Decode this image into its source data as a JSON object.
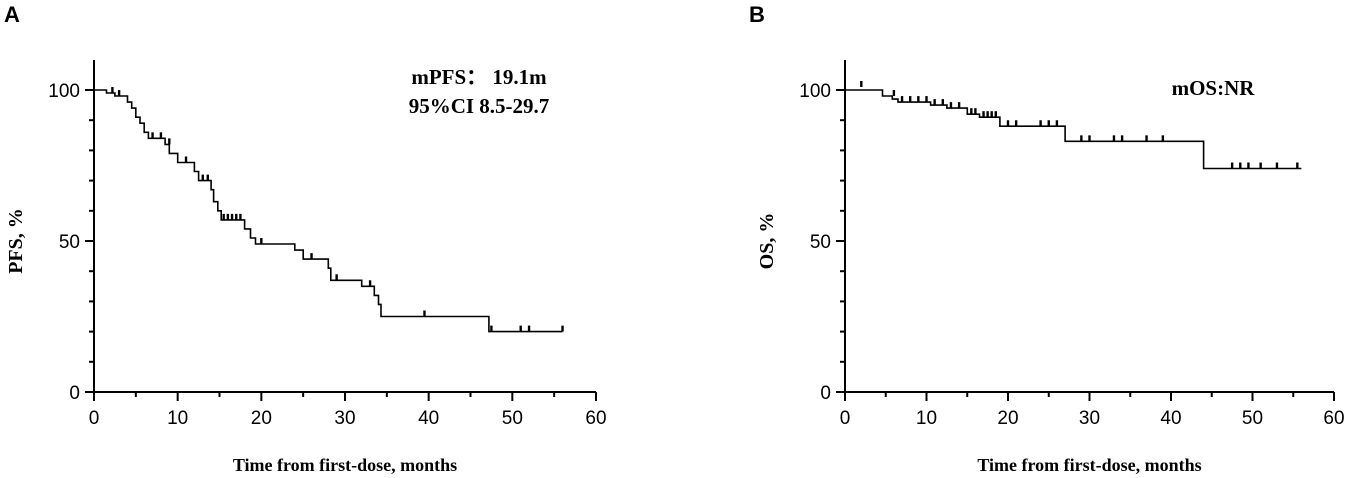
{
  "chart_data": [
    {
      "type": "line",
      "panel_label": "A",
      "xlabel": "Time from first-dose, months",
      "ylabel": "PFS, %",
      "xlim": [
        0,
        60
      ],
      "ylim": [
        0,
        100
      ],
      "xticks": [
        0,
        10,
        20,
        30,
        40,
        50,
        60
      ],
      "yticks": [
        0,
        50,
        100
      ],
      "grid": false,
      "annotations": [
        "mPFS： 19.1m",
        "95%CI 8.5-29.7"
      ],
      "series": [
        {
          "step": [
            [
              0,
              100
            ],
            [
              1.5,
              99
            ],
            [
              2.5,
              98
            ],
            [
              4,
              96
            ],
            [
              4.5,
              94
            ],
            [
              5,
              91
            ],
            [
              5.5,
              89
            ],
            [
              6,
              86
            ],
            [
              6.5,
              84
            ],
            [
              8.5,
              82
            ],
            [
              9,
              79
            ],
            [
              10,
              76
            ],
            [
              12,
              73
            ],
            [
              12.5,
              70
            ],
            [
              14,
              67
            ],
            [
              14.3,
              63
            ],
            [
              14.8,
              60
            ],
            [
              15.2,
              57
            ],
            [
              18,
              54
            ],
            [
              18.7,
              51
            ],
            [
              19.3,
              49
            ],
            [
              24,
              47
            ],
            [
              25,
              44
            ],
            [
              28,
              41
            ],
            [
              28.3,
              37
            ],
            [
              32,
              35
            ],
            [
              33.5,
              32
            ],
            [
              34,
              29
            ],
            [
              34.3,
              25
            ],
            [
              47.2,
              20
            ],
            [
              56,
              20
            ]
          ],
          "censored": [
            [
              2.2,
              99
            ],
            [
              3,
              98
            ],
            [
              7,
              84
            ],
            [
              8,
              84
            ],
            [
              9,
              82
            ],
            [
              11,
              76
            ],
            [
              13,
              70
            ],
            [
              13.6,
              70
            ],
            [
              15.5,
              57
            ],
            [
              16,
              57
            ],
            [
              16.5,
              57
            ],
            [
              17,
              57
            ],
            [
              17.5,
              57
            ],
            [
              20,
              49
            ],
            [
              26,
              44
            ],
            [
              29,
              37
            ],
            [
              33,
              35
            ],
            [
              39.5,
              25
            ],
            [
              47.5,
              20
            ],
            [
              51,
              20
            ],
            [
              52,
              20
            ],
            [
              56,
              20
            ]
          ]
        }
      ]
    },
    {
      "type": "line",
      "panel_label": "B",
      "xlabel": "Time from first-dose, months",
      "ylabel": "OS, %",
      "xlim": [
        0,
        60
      ],
      "ylim": [
        0,
        100
      ],
      "xticks": [
        0,
        10,
        20,
        30,
        40,
        50,
        60
      ],
      "yticks": [
        0,
        50,
        100
      ],
      "grid": false,
      "annotations": [
        "mOS:NR"
      ],
      "series": [
        {
          "step": [
            [
              0,
              100
            ],
            [
              4.6,
              98
            ],
            [
              5.8,
              97
            ],
            [
              6.5,
              96
            ],
            [
              10.5,
              95
            ],
            [
              12.5,
              94
            ],
            [
              15,
              92
            ],
            [
              16.5,
              91
            ],
            [
              19,
              88
            ],
            [
              27,
              83
            ],
            [
              44,
              74
            ],
            [
              56,
              74
            ]
          ],
          "censored": [
            [
              2,
              101
            ],
            [
              6,
              98
            ],
            [
              7,
              96
            ],
            [
              8,
              96
            ],
            [
              9,
              96
            ],
            [
              10,
              96
            ],
            [
              11,
              95
            ],
            [
              12,
              95
            ],
            [
              13,
              94
            ],
            [
              14,
              94
            ],
            [
              15.5,
              92
            ],
            [
              16,
              92
            ],
            [
              17,
              91
            ],
            [
              17.5,
              91
            ],
            [
              18,
              91
            ],
            [
              18.5,
              91
            ],
            [
              20,
              88
            ],
            [
              21,
              88
            ],
            [
              24,
              88
            ],
            [
              25,
              88
            ],
            [
              26,
              88
            ],
            [
              29,
              83
            ],
            [
              30,
              83
            ],
            [
              33,
              83
            ],
            [
              34,
              83
            ],
            [
              37,
              83
            ],
            [
              39,
              83
            ],
            [
              47.5,
              74
            ],
            [
              48.5,
              74
            ],
            [
              49.5,
              74
            ],
            [
              51,
              74
            ],
            [
              53,
              74
            ],
            [
              55.5,
              74
            ]
          ]
        }
      ]
    }
  ]
}
